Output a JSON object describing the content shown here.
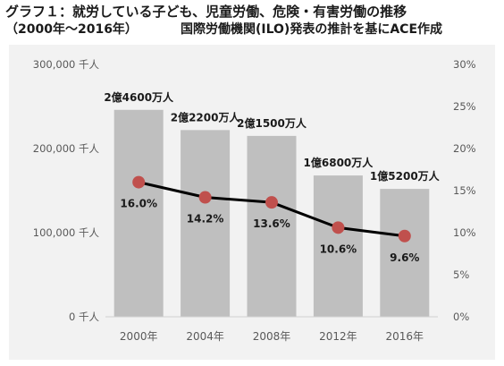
{
  "header": {
    "title_line1": "グラフ１：就労している子ども、児童労働、危険・有害労働の推移",
    "period": "（2000年～2016年）",
    "source": "国際労働機関(ILO)発表の推計を基にACE作成"
  },
  "chart_data": {
    "type": "bar",
    "title": "グラフ１：就労している子ども、児童労働、危険・有害労働の推移",
    "categories": [
      "2000年",
      "2004年",
      "2008年",
      "2012年",
      "2016年"
    ],
    "series": [
      {
        "axis": "left",
        "chart": "bar",
        "color": "#bfbfbf",
        "values": [
          246000,
          222000,
          215000,
          168000,
          152000
        ],
        "labels": [
          "2億4600万人",
          "2億2200万人",
          "2億1500万人",
          "1億6800万人",
          "1億5200万人"
        ]
      },
      {
        "axis": "right",
        "chart": "line",
        "color": "#000000",
        "marker_color": "#c0504d",
        "values": [
          16.0,
          14.2,
          13.6,
          10.6,
          9.6
        ],
        "labels": [
          "16.0%",
          "14.2%",
          "13.6%",
          "10.6%",
          "9.6%"
        ]
      }
    ],
    "y_left": {
      "min": 0,
      "max": 300000,
      "ticks": [
        0,
        100000,
        200000,
        300000
      ],
      "tick_labels": [
        "0 千人",
        "100,000 千人",
        "200,000 千人",
        "300,000 千人"
      ]
    },
    "y_right": {
      "min": 0,
      "max": 30,
      "ticks": [
        0,
        5,
        10,
        15,
        20,
        25,
        30
      ],
      "tick_labels": [
        "0%",
        "5%",
        "10%",
        "15%",
        "20%",
        "25%",
        "30%"
      ]
    },
    "grid": false,
    "legend": "none"
  }
}
